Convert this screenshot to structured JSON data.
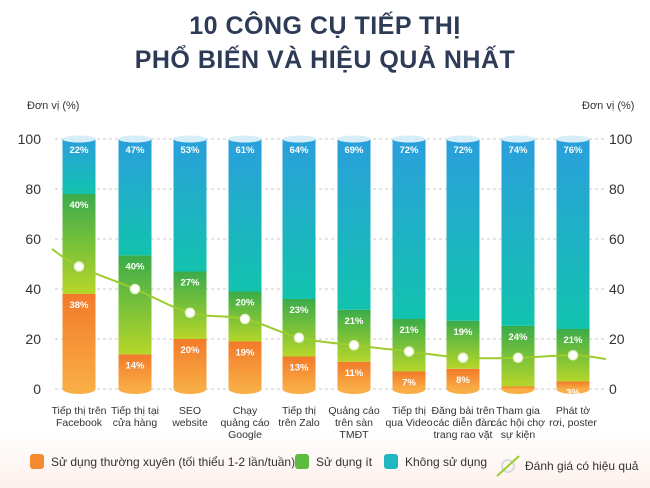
{
  "title_line1": "10 CÔNG CỤ TIẾP THỊ",
  "title_line2": "PHỔ BIẾN VÀ HIỆU QUẢ NHẤT",
  "chart_data": {
    "type": "bar",
    "stacked": true,
    "title": "10 CÔNG CỤ TIẾP THỊ PHỔ BIẾN VÀ HIỆU QUẢ NHẤT",
    "ylabel_left": "Đơn vị (%)",
    "ylabel_right": "Đơn vị (%)",
    "ylim": [
      0,
      100
    ],
    "yticks": [
      "0",
      "20",
      "40",
      "60",
      "80",
      "100"
    ],
    "grid": true,
    "legend_position": "bottom",
    "categories": [
      "Tiếp thị trên\nFacebook",
      "Tiếp thị tại\ncửa hàng",
      "SEO\nwebsite",
      "Chạy\nquảng cáo\nGoogle",
      "Tiếp thị\ntrên Zalo",
      "Quảng cáo\ntrên sàn\nTMĐT",
      "Tiếp thị\nqua Video",
      "Đăng bài trên\ncác diễn đàn\ntrang rao vặt",
      "Tham gia\ncác hội chợ\nsự kiện",
      "Phát tờ\nrơi, poster"
    ],
    "series": [
      {
        "name": "Sử dụng thường xuyên (tối thiểu 1-2 lần/tuần)",
        "color": "#f5892f",
        "values": [
          38,
          14,
          20,
          19,
          13,
          11,
          7,
          8,
          1,
          3
        ]
      },
      {
        "name": "Sử dụng ít",
        "color": "#5dbb3f",
        "values": [
          40,
          40,
          27,
          20,
          23,
          21,
          21,
          19,
          24,
          21
        ]
      },
      {
        "name": "Không sử dụng",
        "color": "#1fb8c0",
        "values": [
          22,
          47,
          53,
          61,
          64,
          69,
          72,
          72,
          74,
          76
        ]
      },
      {
        "name": "Đánh giá có hiệu quả",
        "type": "line",
        "color": "#9ccc2e",
        "values": [
          49,
          40,
          30.5,
          28,
          20.5,
          17.5,
          15,
          12.5,
          12.5,
          13.5
        ]
      }
    ]
  }
}
